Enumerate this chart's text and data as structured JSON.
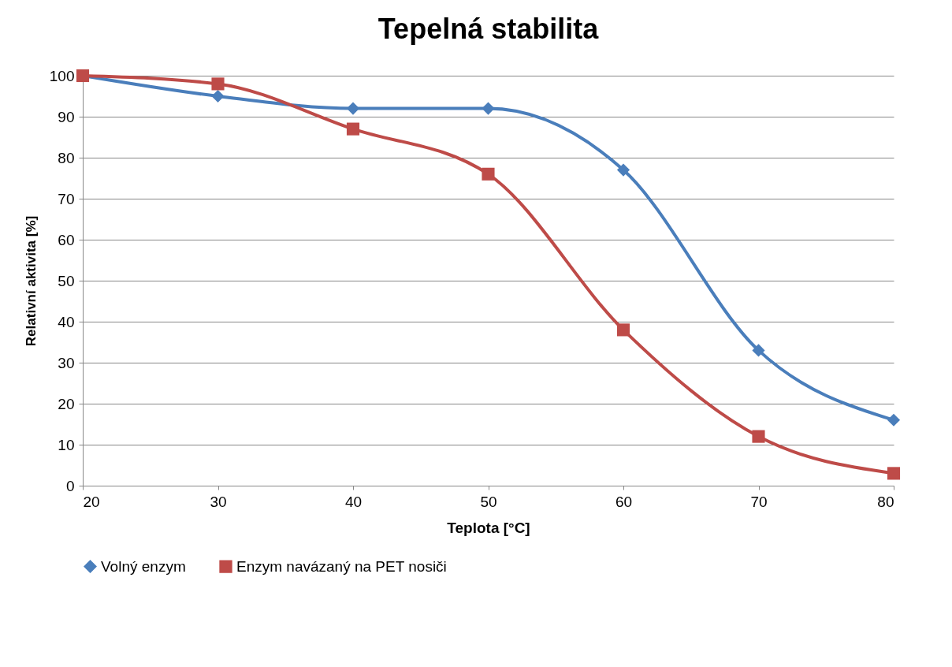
{
  "chart_data": {
    "type": "line",
    "title": "Tepelná stabilita",
    "xlabel": "Teplota [°C]",
    "ylabel": "Relativní aktivita [%]",
    "x": [
      20,
      30,
      40,
      50,
      60,
      70,
      80
    ],
    "series": [
      {
        "name": "Volný enzym",
        "color": "#4a7ebb",
        "marker": "diamond",
        "values": [
          100,
          95,
          92,
          92,
          77,
          33,
          16
        ]
      },
      {
        "name": "Enzym navázaný na PET nosiči",
        "color": "#be4b48",
        "marker": "square",
        "values": [
          100,
          98,
          87,
          76,
          38,
          12,
          3
        ]
      }
    ],
    "xlim": [
      20,
      80
    ],
    "xticks": [
      20,
      30,
      40,
      50,
      60,
      70,
      80
    ],
    "ylim": [
      0,
      100
    ],
    "yticks": [
      0,
      10,
      20,
      30,
      40,
      50,
      60,
      70,
      80,
      90,
      100
    ],
    "grid": "y",
    "legend": "bottom",
    "line_style": "solid"
  }
}
